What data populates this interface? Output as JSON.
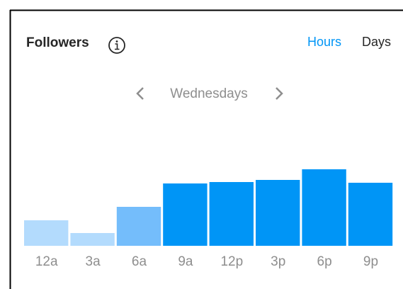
{
  "header": {
    "title": "Followers",
    "tabs": [
      "Hours",
      "Days"
    ],
    "active_tab": 0
  },
  "navigator": {
    "label": "Wednesdays"
  },
  "chart_data": {
    "type": "bar",
    "categories": [
      "12a",
      "3a",
      "6a",
      "9a",
      "12p",
      "3p",
      "6p",
      "9p"
    ],
    "values": [
      36,
      18,
      55,
      88,
      90,
      93,
      108,
      89
    ],
    "colors": [
      "#b3dbfd",
      "#b3dbfd",
      "#74bdfb",
      "#0095f6",
      "#0095f6",
      "#0095f6",
      "#0095f6",
      "#0095f6"
    ],
    "ylim": [
      0,
      120
    ]
  }
}
